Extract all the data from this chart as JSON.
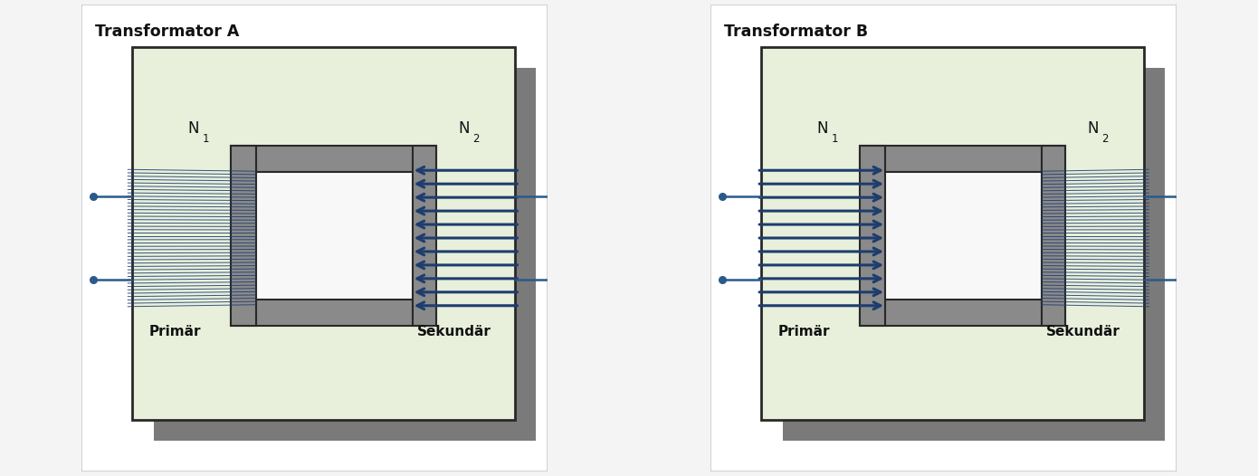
{
  "title_A": "Transformator A",
  "title_B": "Transformator B",
  "bg_color": "#f4f4f4",
  "panel_bg_light": "#e8f0dc",
  "panel_bg_green": "#d4e4c0",
  "shadow_color": "#7a7a7a",
  "panel_border": "#282828",
  "core_fill": "#8a8a8a",
  "core_edge": "#282828",
  "inner_fill": "#f8f8f8",
  "coil_color": "#1e3d6e",
  "terminal_color": "#2a5a8a",
  "text_color": "#111111",
  "primary_label": "Primär",
  "secondary_label": "Sekundär"
}
